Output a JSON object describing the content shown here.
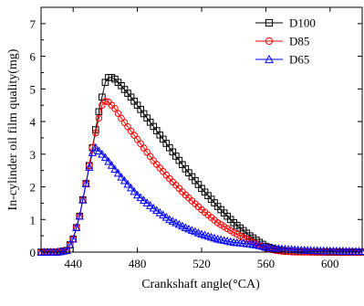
{
  "chart_data": {
    "type": "line",
    "title": "",
    "xlabel": "Crankshaft  angle(°CA)",
    "ylabel": "In-cylinder oil film quality(mg)",
    "xlim": [
      420,
      620
    ],
    "ylim": [
      0,
      7.5
    ],
    "x_ticks": [
      440,
      480,
      520,
      560,
      600
    ],
    "y_ticks": [
      0,
      1,
      2,
      3,
      4,
      5,
      6,
      7
    ],
    "grid": false,
    "legend": {
      "position": "top-right"
    },
    "series": [
      {
        "name": "D100",
        "color": "#000000",
        "marker": "square",
        "points": [
          [
            420,
            0
          ],
          [
            430,
            0
          ],
          [
            436,
            0.05
          ],
          [
            440,
            0.4
          ],
          [
            444,
            1.1
          ],
          [
            448,
            2.1
          ],
          [
            452,
            3.2
          ],
          [
            456,
            4.3
          ],
          [
            460,
            5.2
          ],
          [
            462,
            5.35
          ],
          [
            464,
            5.35
          ],
          [
            466,
            5.3
          ],
          [
            470,
            5.1
          ],
          [
            476,
            4.75
          ],
          [
            480,
            4.5
          ],
          [
            490,
            3.85
          ],
          [
            500,
            3.2
          ],
          [
            510,
            2.55
          ],
          [
            520,
            1.95
          ],
          [
            530,
            1.4
          ],
          [
            540,
            0.9
          ],
          [
            550,
            0.5
          ],
          [
            556,
            0.3
          ],
          [
            560,
            0.18
          ],
          [
            566,
            0.08
          ],
          [
            572,
            0.03
          ],
          [
            580,
            0.01
          ],
          [
            600,
            0
          ],
          [
            620,
            0
          ]
        ]
      },
      {
        "name": "D85",
        "color": "#ff0000",
        "marker": "circle",
        "points": [
          [
            420,
            0
          ],
          [
            430,
            0
          ],
          [
            436,
            0.05
          ],
          [
            440,
            0.4
          ],
          [
            444,
            1.1
          ],
          [
            448,
            2.1
          ],
          [
            452,
            3.2
          ],
          [
            456,
            4.1
          ],
          [
            458,
            4.5
          ],
          [
            460,
            4.62
          ],
          [
            462,
            4.6
          ],
          [
            466,
            4.4
          ],
          [
            470,
            4.1
          ],
          [
            480,
            3.45
          ],
          [
            490,
            2.8
          ],
          [
            500,
            2.25
          ],
          [
            510,
            1.75
          ],
          [
            520,
            1.3
          ],
          [
            530,
            0.9
          ],
          [
            540,
            0.6
          ],
          [
            550,
            0.35
          ],
          [
            556,
            0.2
          ],
          [
            560,
            0.12
          ],
          [
            566,
            0.05
          ],
          [
            572,
            0.02
          ],
          [
            580,
            0
          ],
          [
            620,
            0
          ]
        ]
      },
      {
        "name": "D65",
        "color": "#0000ff",
        "marker": "triangle",
        "points": [
          [
            420,
            0
          ],
          [
            430,
            0
          ],
          [
            436,
            0.05
          ],
          [
            440,
            0.4
          ],
          [
            444,
            1.1
          ],
          [
            448,
            2.1
          ],
          [
            450,
            2.6
          ],
          [
            452,
            3.05
          ],
          [
            454,
            3.2
          ],
          [
            456,
            3.1
          ],
          [
            460,
            2.9
          ],
          [
            470,
            2.3
          ],
          [
            480,
            1.75
          ],
          [
            490,
            1.35
          ],
          [
            500,
            1.0
          ],
          [
            510,
            0.75
          ],
          [
            520,
            0.55
          ],
          [
            530,
            0.4
          ],
          [
            540,
            0.3
          ],
          [
            550,
            0.25
          ],
          [
            556,
            0.2
          ],
          [
            560,
            0.15
          ],
          [
            570,
            0.1
          ],
          [
            580,
            0.07
          ],
          [
            590,
            0.05
          ],
          [
            600,
            0.04
          ],
          [
            610,
            0.03
          ],
          [
            620,
            0.02
          ]
        ]
      }
    ]
  }
}
